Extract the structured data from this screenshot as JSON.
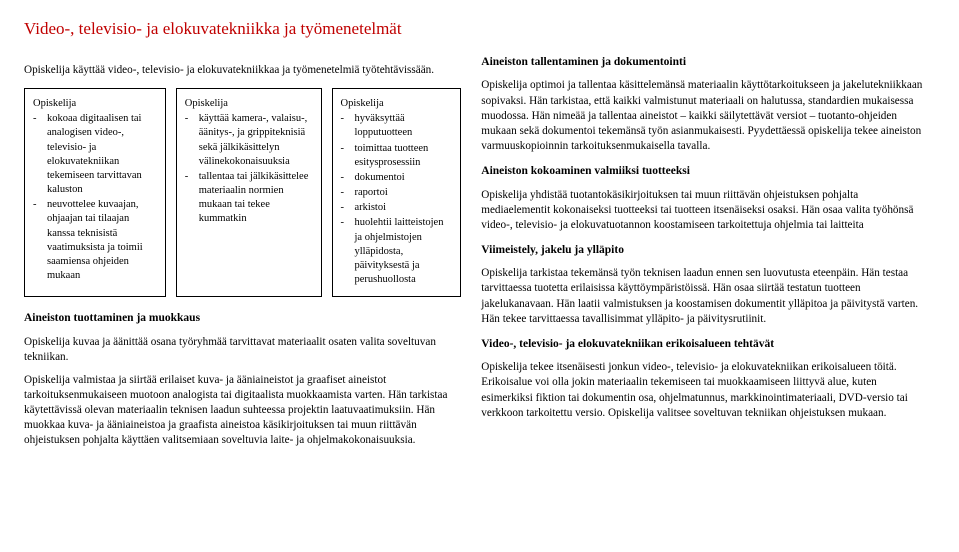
{
  "title": "Video-, televisio- ja elokuvatekniikka ja työmenetelmät",
  "left": {
    "intro": "Opiskelija käyttää video-, televisio- ja elokuvatekniikkaa ja työmenetelmiä työtehtävissään.",
    "col1": {
      "head": "Opiskelija",
      "i1": "kokoaa digitaalisen tai analogisen video-, televisio- ja elokuvatekniikan tekemiseen tarvittavan kaluston",
      "i2": "neuvottelee kuvaajan, ohjaajan tai tilaajan kanssa teknisistä vaatimuksista ja toimii saamiensa ohjeiden mukaan"
    },
    "col2": {
      "head": "Opiskelija",
      "i1": "käyttää kamera-, valaisu-, äänitys-, ja grippiteknisiä sekä jälkikäsittelyn välinekokonaisuuksia",
      "i2": "tallentaa tai jälkikäsittelee materiaalin normien mukaan tai tekee kummatkin"
    },
    "col3": {
      "head": "Opiskelija",
      "i1": "hyväksyttää lopputuotteen",
      "i2": "toimittaa tuotteen esitysprosessiin",
      "i3": "dokumentoi",
      "i4": "raportoi",
      "i5": "arkistoi",
      "i6": "huolehtii laitteistojen ja ohjelmistojen ylläpidosta, päivityksestä ja perushuollosta"
    },
    "s1": "Aineiston tuottaminen ja muokkaus",
    "p1": "Opiskelija kuvaa ja äänittää osana työryhmää tarvittavat materiaalit osaten valita soveltuvan tekniikan.",
    "p2": "Opiskelija valmistaa ja siirtää erilaiset kuva- ja ääniaineistot ja graafiset aineistot tarkoituksenmukaiseen muotoon analogista tai digitaalista muokkaamista varten. Hän tarkistaa käytettävissä olevan materiaalin teknisen laadun suhteessa projektin laatuvaatimuksiin. Hän muokkaa kuva- ja ääniaineistoa ja graafista aineistoa käsikirjoituksen tai muun riittävän ohjeistuksen pohjalta käyttäen valitsemiaan soveltuvia laite- ja ohjelmakokonaisuuksia."
  },
  "right": {
    "s1": "Aineiston tallentaminen ja dokumentointi",
    "p1": "Opiskelija optimoi ja tallentaa käsittelemänsä materiaalin käyttötarkoitukseen ja jakelutekniikkaan sopivaksi. Hän tarkistaa, että kaikki valmistunut materiaali on halutussa, standardien mukaisessa muodossa. Hän nimeää ja tallentaa aineistot – kaikki säilytettävät versiot – tuotanto-ohjeiden mukaan sekä dokumentoi tekemänsä työn asianmukaisesti. Pyydettäessä opiskelija tekee aineiston varmuuskopioinnin tarkoituksenmukaisella tavalla.",
    "s2": "Aineiston kokoaminen valmiiksi tuotteeksi",
    "p2": "Opiskelija yhdistää tuotantokäsikirjoituksen tai muun riittävän ohjeistuksen pohjalta mediaelementit kokonaiseksi tuotteeksi tai tuotteen itsenäiseksi osaksi. Hän osaa valita työhönsä video-, televisio- ja elokuvatuotannon koostamiseen tarkoitettuja ohjelmia tai laitteita",
    "s3": "Viimeistely, jakelu ja ylläpito",
    "p3": "Opiskelija tarkistaa tekemänsä työn teknisen laadun ennen sen luovutusta eteenpäin. Hän testaa tarvittaessa tuotetta erilaisissa käyttöympäristöissä. Hän osaa siirtää testatun tuotteen jakelukanavaan. Hän laatii valmistuksen ja koostamisen dokumentit ylläpitoa ja päivitystä varten. Hän tekee tarvittaessa tavallisimmat ylläpito- ja päivitysrutiinit.",
    "s4": "Video-, televisio- ja elokuvatekniikan erikoisalueen tehtävät",
    "p4": "Opiskelija tekee itsenäisesti jonkun video-, televisio- ja elokuvatekniikan erikoisalueen töitä. Erikoisalue voi olla jokin materiaalin tekemiseen tai muokkaamiseen liittyvä alue, kuten esimerkiksi fiktion tai dokumentin osa, ohjelmatunnus, markkinointimateriaali, DVD-versio tai verkkoon tarkoitettu versio. Opiskelija valitsee soveltuvan tekniikan ohjeistuksen mukaan."
  }
}
